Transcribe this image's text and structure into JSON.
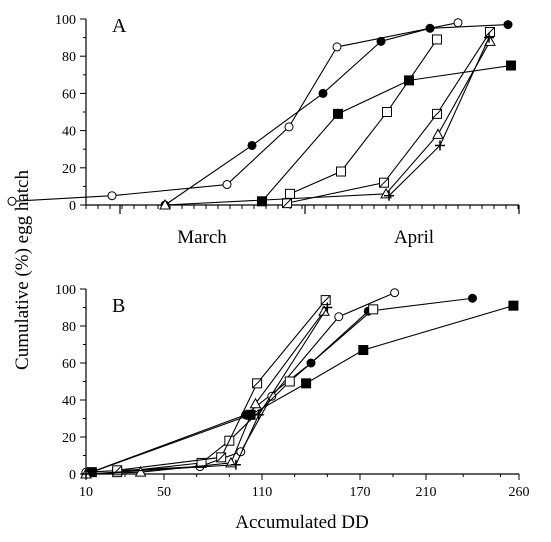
{
  "figure": {
    "ylabel": "Cumulative (%) egg hatch"
  },
  "chart_data": [
    {
      "panel": "A",
      "type": "line",
      "xlabel": "",
      "x_tick_labels": [
        "March",
        "April"
      ],
      "ylabel": "Cumulative (%) egg hatch",
      "ylim": [
        0,
        100
      ],
      "y_ticks": [
        0,
        20,
        40,
        60,
        80,
        100
      ],
      "grid": false,
      "series": [
        {
          "marker": "filled-circle",
          "points": [
            [
              165,
              0
            ],
            [
              252,
              32
            ],
            [
              323,
              60
            ],
            [
              381,
              88
            ],
            [
              430,
              95
            ],
            [
              508,
              97
            ]
          ]
        },
        {
          "marker": "open-circle",
          "points": [
            [
              12,
              2
            ],
            [
              112,
              5
            ],
            [
              227,
              11
            ],
            [
              289,
              42
            ],
            [
              337,
              85
            ],
            [
              458,
              98
            ]
          ]
        },
        {
          "marker": "filled-square",
          "points": [
            [
              262,
              2
            ],
            [
              338,
              49
            ],
            [
              409,
              67
            ],
            [
              511,
              75
            ]
          ]
        },
        {
          "marker": "open-square",
          "points": [
            [
              290,
              6
            ],
            [
              341,
              18
            ],
            [
              387,
              50
            ],
            [
              437,
              89
            ]
          ]
        },
        {
          "marker": "crossed-square",
          "points": [
            [
              287,
              1
            ],
            [
              384,
              12
            ],
            [
              437,
              49
            ],
            [
              490,
              93
            ]
          ]
        },
        {
          "marker": "open-triangle",
          "points": [
            [
              165,
              0
            ],
            [
              386,
              6
            ],
            [
              438,
              38
            ],
            [
              490,
              88
            ]
          ]
        },
        {
          "marker": "plus",
          "points": [
            [
              389,
              5
            ],
            [
              440,
              32
            ],
            [
              489,
              90
            ]
          ]
        }
      ]
    },
    {
      "panel": "B",
      "type": "line",
      "xlabel": "Accumulated DD",
      "ylabel": "Cumulative (%) egg hatch",
      "xlim": [
        10,
        260
      ],
      "ylim": [
        0,
        100
      ],
      "x_ticks": [
        10,
        50,
        110,
        170,
        210,
        260
      ],
      "y_ticks": [
        0,
        20,
        40,
        60,
        80,
        100
      ],
      "grid": false,
      "series": [
        {
          "marker": "filled-circle",
          "points": [
            [
              10,
              0
            ],
            [
              100,
              32
            ],
            [
              140,
              60
            ],
            [
              175,
              88
            ],
            [
              235,
              95
            ]
          ]
        },
        {
          "marker": "open-circle",
          "points": [
            [
              10,
              1
            ],
            [
              72,
              4
            ],
            [
              97,
              12
            ],
            [
              116,
              42
            ],
            [
              157,
              85
            ],
            [
              191,
              98
            ]
          ]
        },
        {
          "marker": "filled-square",
          "points": [
            [
              13,
              1
            ],
            [
              103,
              32
            ],
            [
              137,
              49
            ],
            [
              172,
              67
            ],
            [
              257,
              91
            ]
          ]
        },
        {
          "marker": "open-square",
          "points": [
            [
              26,
              1
            ],
            [
              73,
              6
            ],
            [
              90,
              18
            ],
            [
              127,
              50
            ],
            [
              178,
              89
            ]
          ]
        },
        {
          "marker": "crossed-square",
          "points": [
            [
              26,
              2
            ],
            [
              85,
              9
            ],
            [
              107,
              49
            ],
            [
              149,
              94
            ]
          ]
        },
        {
          "marker": "open-triangle",
          "points": [
            [
              10,
              0
            ],
            [
              38,
              1
            ],
            [
              91,
              6
            ],
            [
              106,
              38
            ],
            [
              148,
              88
            ]
          ]
        },
        {
          "marker": "plus",
          "points": [
            [
              10,
              0
            ],
            [
              94,
              5
            ],
            [
              108,
              32
            ],
            [
              150,
              90
            ]
          ]
        }
      ]
    }
  ]
}
